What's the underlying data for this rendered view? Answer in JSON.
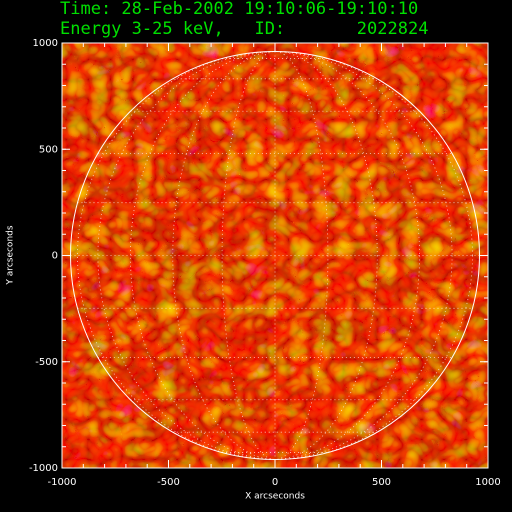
{
  "chart_data": {
    "type": "image",
    "title": "Time: 28-Feb-2002 19:10:06-19:10:10",
    "subtitle": "Energy 3-25 keV,   ID:       2022824",
    "x_label": "X arcseconds",
    "y_label": "Y arcseconds",
    "xlim": [
      -1000,
      1000
    ],
    "ylim": [
      -1000,
      1000
    ],
    "xticks": [
      -1000,
      -500,
      0,
      500,
      1000
    ],
    "yticks": [
      -1000,
      -500,
      0,
      500,
      1000
    ],
    "disk_radius": 960
  }
}
